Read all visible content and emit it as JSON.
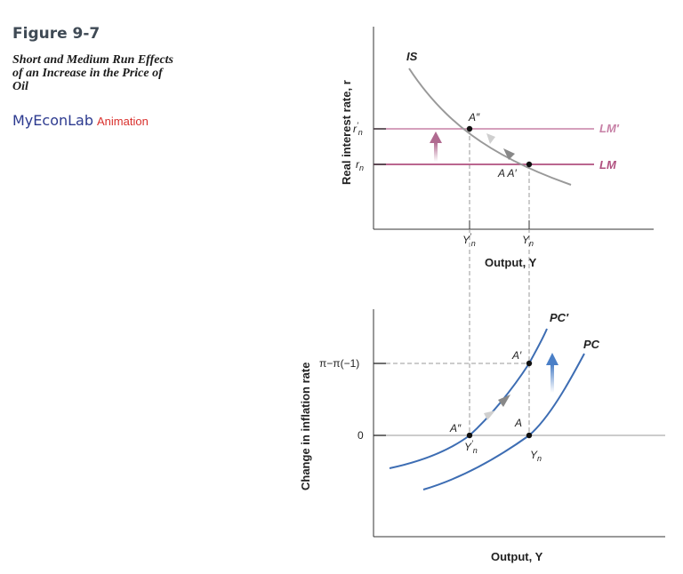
{
  "figure": {
    "number": "Figure 9-7",
    "title": "Short and Medium Run Effects of an Increase in the Price of Oil",
    "brand_my": "My",
    "brand_econ": "Econ",
    "brand_lab": "Lab",
    "media_label": "Animation"
  },
  "colors": {
    "lm": "#b0507f",
    "lm_prime": "#c780a6",
    "is": "#999999",
    "pc": "#3d6db3",
    "axis": "#333333",
    "guide": "#9a9a9a",
    "arrow_up_lm": "#b06a90",
    "arrow_up_pc": "#4a7fc7",
    "move_arrow": "#888888"
  },
  "top_panel": {
    "y_axis_title": "Real interest rate, r",
    "x_axis_title": "Output, Y",
    "is_label": "IS",
    "lm_label": "LM",
    "lm_prime_label": "LM′",
    "point_a_label": "A A′",
    "point_a2_label": "A″",
    "r_n": {
      "base": "r",
      "sub": "n",
      "prime": ""
    },
    "r_n_prime": {
      "base": "r",
      "sub": "n",
      "prime": "′"
    },
    "y_n": {
      "base": "Y",
      "sub": "n",
      "prime": ""
    },
    "y_n_prime": {
      "base": "Y",
      "sub": "n",
      "prime": "′"
    }
  },
  "bottom_panel": {
    "y_axis_title": "Change in inflation rate",
    "x_axis_title": "Output, Y",
    "pc_label": "PC",
    "pc_prime_label": "PC′",
    "point_a_label": "A",
    "point_a_prime_label": "A′",
    "point_a2_label": "A″",
    "tick_inflation_change": "π−π(−1)",
    "tick_zero": "0",
    "y_n": {
      "base": "Y",
      "sub": "n",
      "prime": ""
    },
    "y_n_prime": {
      "base": "Y",
      "sub": "n",
      "prime": "′"
    }
  }
}
